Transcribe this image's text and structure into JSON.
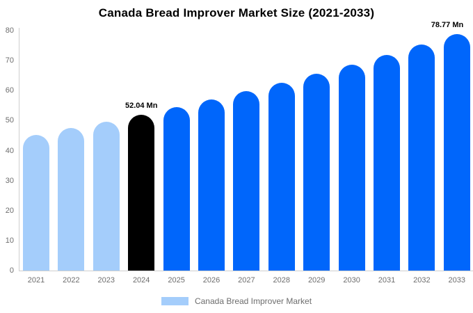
{
  "page": {
    "background": "#ffffff"
  },
  "chart_data": {
    "type": "bar",
    "title": "Canada Bread Improver Market Size (2021-2033)",
    "categories": [
      "2021",
      "2022",
      "2023",
      "2024",
      "2025",
      "2026",
      "2027",
      "2028",
      "2029",
      "2030",
      "2031",
      "2032",
      "2033"
    ],
    "values": [
      45.31,
      47.45,
      49.69,
      52.04,
      54.5,
      57.07,
      59.77,
      62.59,
      65.55,
      68.64,
      71.89,
      75.28,
      78.77
    ],
    "unit": "Mn",
    "xlabel": "",
    "ylabel": "",
    "ylim": [
      0,
      80
    ],
    "yticks": [
      0,
      10,
      20,
      30,
      40,
      50,
      60,
      70,
      80
    ],
    "grid": false,
    "bar_colors": [
      "#a4cdfb",
      "#a4cdfb",
      "#a4cdfb",
      "#000000",
      "#0066fb",
      "#0066fb",
      "#0066fb",
      "#0066fb",
      "#0066fb",
      "#0066fb",
      "#0066fb",
      "#0066fb",
      "#0066fb"
    ],
    "data_labels": [
      {
        "category": "2024",
        "text": "52.04 Mn"
      },
      {
        "category": "2033",
        "text": "78.77 Mn"
      }
    ],
    "legend": {
      "label": "Canada Bread Improver Market",
      "swatch_color": "#a4cdfb",
      "position": "bottom"
    },
    "colors": {
      "historical_bar": "#a4cdfb",
      "current_year_bar": "#000000",
      "forecast_bar": "#0066fb",
      "axis_line": "#cfcfcf",
      "tick_label": "#6d6d6d",
      "title": "#000000"
    }
  }
}
